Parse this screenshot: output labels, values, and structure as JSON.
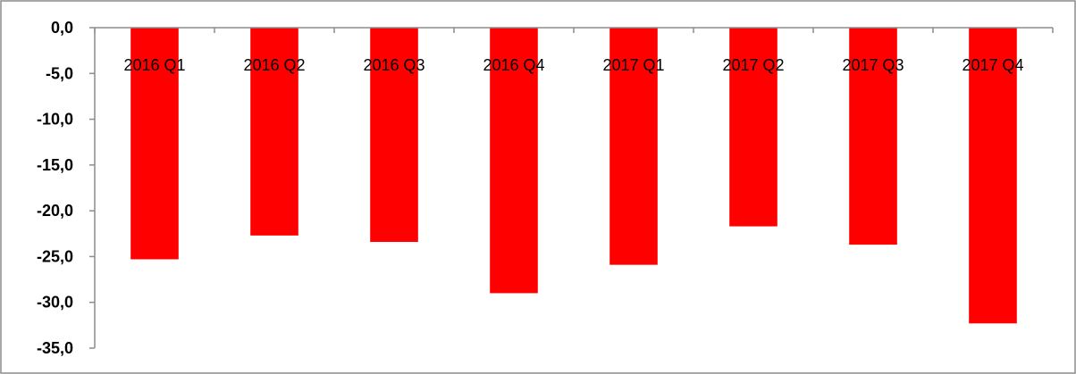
{
  "chart_data": {
    "type": "bar",
    "title": "",
    "xlabel": "",
    "ylabel": "",
    "categories": [
      "2016 Q1",
      "2016 Q2",
      "2016 Q3",
      "2016 Q4",
      "2017 Q1",
      "2017 Q2",
      "2017 Q3",
      "2017 Q4"
    ],
    "values": [
      -25.3,
      -22.7,
      -23.4,
      -29.0,
      -25.9,
      -21.7,
      -23.7,
      -32.3
    ],
    "ylim": [
      -35,
      0
    ],
    "yticks": [
      "0,0",
      "-5,0",
      "-10,0",
      "-15,0",
      "-20,0",
      "-25,0",
      "-30,0",
      "-35,0"
    ],
    "ytick_values": [
      0,
      -5,
      -10,
      -15,
      -20,
      -25,
      -30,
      -35
    ],
    "bar_color": "#ff0000",
    "grid": false,
    "legend": "none"
  }
}
